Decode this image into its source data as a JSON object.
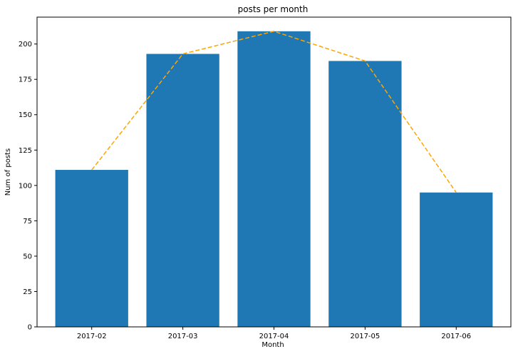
{
  "chart_data": {
    "type": "bar",
    "title": "posts per month",
    "xlabel": "Month",
    "ylabel": "Num of posts",
    "categories": [
      "2017-02",
      "2017-03",
      "2017-04",
      "2017-05",
      "2017-06"
    ],
    "series": [
      {
        "type": "bar",
        "values": [
          111,
          193,
          209,
          188,
          95
        ]
      },
      {
        "type": "line",
        "values": [
          111,
          193,
          209,
          188,
          95
        ]
      }
    ],
    "ylim": [
      0,
      219
    ],
    "yticks": [
      0,
      25,
      50,
      75,
      100,
      125,
      150,
      175,
      200
    ],
    "grid": false,
    "colors": {
      "bar": "#1f77b4",
      "line": "#ffa500"
    }
  }
}
